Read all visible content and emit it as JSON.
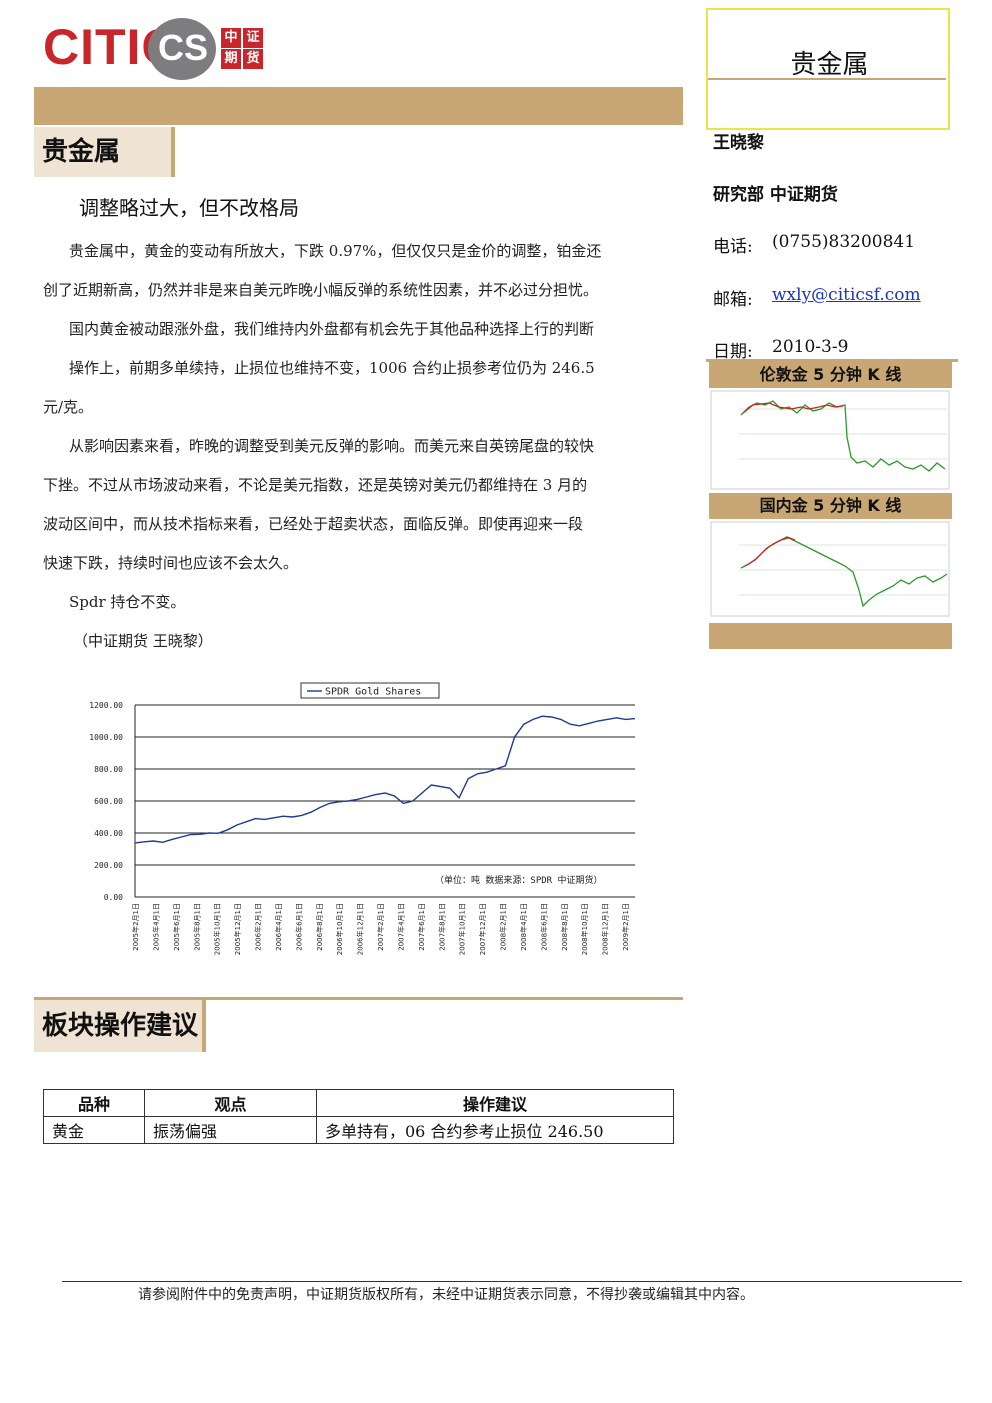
{
  "header": {
    "logo_citic": "CITIC",
    "logo_cs": "CS",
    "logo_chars": [
      "中",
      "证",
      "期",
      "货"
    ],
    "title_box": "贵金属"
  },
  "section1": {
    "tab": "贵金属",
    "headline": "调整略过大，但不改格局",
    "paragraphs": [
      "贵金属中，黄金的变动有所放大，下跌 0.97%，但仅仅只是金价的调整，铂金还",
      "创了近期新高，仍然并非是来自美元昨晚小幅反弹的系统性因素，并不必过分担忧。",
      "国内黄金被动跟涨外盘，我们维持内外盘都有机会先于其他品种选择上行的判断",
      "操作上，前期多单续持，止损位也维持不变，1006 合约止损参考位仍为 246.5",
      "元/克。",
      "从影响因素来看，昨晚的调整受到美元反弹的影响。而美元来自英镑尾盘的较快",
      "下挫。不过从市场波动来看，不论是美元指数，还是英镑对美元仍都维持在 3 月的",
      "波动区间中，而从技术指标来看，已经处于超卖状态，面临反弹。即使再迎来一段",
      "快速下跌，持续时间也应该不会太久。",
      "Spdr 持仓不变。",
      "（中证期货  王晓黎）"
    ]
  },
  "sidebar": {
    "author": "王晓黎",
    "dept": "研究部  中证期货",
    "phone_label": "电话:",
    "phone": "(0755)83200841",
    "email_label": "邮箱:",
    "email": "wxly@citicsf.com",
    "date_label": "日期:",
    "date": "2010-3-9",
    "chart1_title": "伦敦金 5 分钟 K 线",
    "chart2_title": "国内金 5 分钟 K 线"
  },
  "chart_data": {
    "type": "line",
    "series": [
      {
        "name": "SPDR Gold Shares",
        "values": [
          338,
          345,
          350,
          342,
          360,
          375,
          390,
          392,
          400,
          398,
          420,
          450,
          470,
          490,
          485,
          495,
          505,
          500,
          510,
          530,
          560,
          585,
          595,
          600,
          610,
          625,
          640,
          650,
          632,
          585,
          600,
          650,
          700,
          690,
          680,
          620,
          740,
          770,
          780,
          800,
          820,
          1000,
          1080,
          1110,
          1130,
          1125,
          1110,
          1080,
          1070,
          1085,
          1100,
          1110,
          1120,
          1110,
          1115
        ]
      }
    ],
    "x_tick_labels": [
      "2005年2月1日",
      "2005年4月1日",
      "2005年6月1日",
      "2005年8月1日",
      "2005年10月1日",
      "2005年12月1日",
      "2006年2月1日",
      "2006年4月1日",
      "2006年6月1日",
      "2006年8月1日",
      "2006年10月1日",
      "2006年12月1日",
      "2007年2月1日",
      "2007年4月1日",
      "2007年6月1日",
      "2007年8月1日",
      "2007年10月1日",
      "2007年12月1日",
      "2008年2月1日",
      "2008年4月1日",
      "2008年6月1日",
      "2008年8月1日",
      "2008年10月1日",
      "2008年12月1日",
      "2009年2月1日"
    ],
    "y_tick_labels": [
      "1200.00",
      "1000.00",
      "800.00",
      "600.00",
      "400.00",
      "200.00",
      "0.00"
    ],
    "ylim": [
      0,
      1200
    ],
    "grid": true,
    "legend": "top",
    "note": "（单位：吨  数据来源：SPDR  中证期货）"
  },
  "section2": {
    "tab": "板块操作建议",
    "table_headers": [
      "品种",
      "观点",
      "操作建议"
    ],
    "rows": [
      [
        "黄金",
        "振荡偏强",
        "多单持有，06 合约参考止损位 246.50"
      ]
    ]
  },
  "footer": "请参阅附件中的免责声明，中证期货版权所有，未经中证期货表示同意，不得抄袭或编辑其中内容。"
}
